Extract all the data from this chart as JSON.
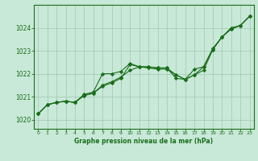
{
  "xlabel": "Graphe pression niveau de la mer (hPa)",
  "xlim": [
    -0.5,
    23.5
  ],
  "ylim": [
    1019.6,
    1025.0
  ],
  "yticks": [
    1020,
    1021,
    1022,
    1023,
    1024
  ],
  "xticks": [
    0,
    1,
    2,
    3,
    4,
    5,
    6,
    7,
    8,
    9,
    10,
    11,
    12,
    13,
    14,
    15,
    16,
    17,
    18,
    19,
    20,
    21,
    22,
    23
  ],
  "bg_color": "#c8e8d8",
  "grid_color": "#a0c8b0",
  "line_color": "#1a6e1a",
  "border_color": "#1a6e1a",
  "line1": [
    1020.25,
    1020.65,
    1020.75,
    1020.8,
    1020.75,
    1021.05,
    1021.15,
    1021.45,
    1021.6,
    1021.8,
    1022.4,
    1022.3,
    1022.3,
    1022.25,
    1022.25,
    1021.8,
    1021.75,
    1021.95,
    1022.3,
    1023.05,
    1023.6,
    1023.95,
    1024.1,
    1024.5
  ],
  "line2": [
    1020.25,
    1020.65,
    1020.75,
    1020.8,
    1020.75,
    1021.05,
    1021.15,
    1021.5,
    1021.65,
    1021.85,
    1022.15,
    1022.3,
    1022.25,
    1022.2,
    1022.2,
    1021.95,
    1021.75,
    1021.95,
    1022.15,
    1023.05,
    1023.6,
    1023.95,
    1024.1,
    1024.5
  ],
  "line3": [
    1020.25,
    1020.65,
    1020.75,
    1020.8,
    1020.75,
    1021.1,
    1021.2,
    1022.0,
    1022.0,
    1022.1,
    1022.45,
    1022.3,
    1022.3,
    1022.25,
    1022.25,
    1021.95,
    1021.75,
    1022.2,
    1022.3,
    1023.1,
    1023.6,
    1024.0,
    1024.1,
    1024.5
  ]
}
